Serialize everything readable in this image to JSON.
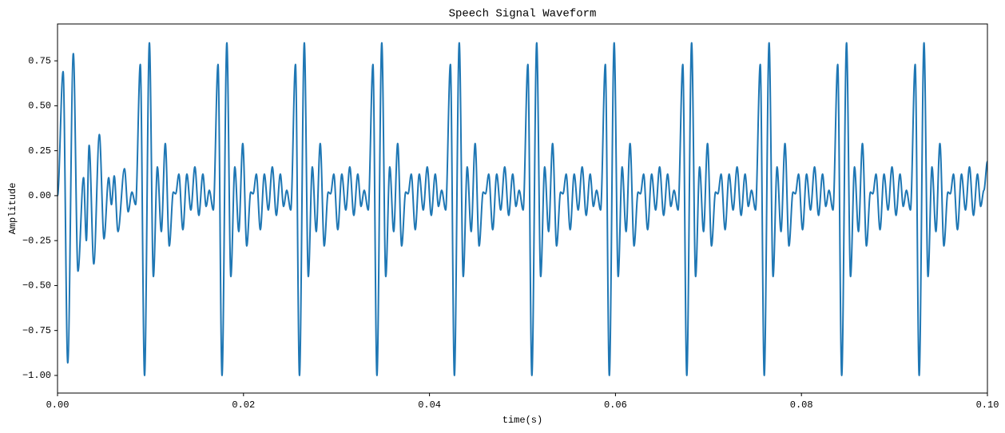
{
  "chart_data": {
    "type": "line",
    "title": "Speech Signal Waveform",
    "x_label": "time(s)",
    "y_label": "Amplitude",
    "xlim": [
      0,
      0.1
    ],
    "ylim": [
      -1.098,
      0.955
    ],
    "xticks": [
      {
        "value": 0,
        "label": "0.00"
      },
      {
        "value": 0.02,
        "label": "0.02"
      },
      {
        "value": 0.04,
        "label": "0.04"
      },
      {
        "value": 0.06,
        "label": "0.06"
      },
      {
        "value": 0.08,
        "label": "0.08"
      },
      {
        "value": 0.1,
        "label": "0.10"
      }
    ],
    "yticks": [
      {
        "value": -1,
        "label": "−1.00"
      },
      {
        "value": -0.75,
        "label": "−0.75"
      },
      {
        "value": -0.5,
        "label": "−0.50"
      },
      {
        "value": -0.25,
        "label": "−0.25"
      },
      {
        "value": 0,
        "label": "0.00"
      },
      {
        "value": 0.25,
        "label": "0.25"
      },
      {
        "value": 0.5,
        "label": "0.50"
      },
      {
        "value": 0.75,
        "label": "0.75"
      }
    ],
    "grid": false,
    "x": [
      0,
      0.0006,
      0.0011,
      0.0017,
      0.0022,
      0.0028,
      0.0031,
      0.0034,
      0.0039,
      0.0045,
      0.005,
      0.0055,
      0.0058,
      0.0061,
      0.0065,
      0.0072,
      0.0076,
      0.008,
      0.0084,
      0.0089,
      0.00936,
      0.00988,
      0.01031,
      0.01074,
      0.01116,
      0.01159,
      0.01202,
      0.01245,
      0.01271,
      0.01305,
      0.01348,
      0.01391,
      0.01434,
      0.01477,
      0.0152,
      0.01563,
      0.01598,
      0.01632,
      0.01675,
      0.01726,
      0.01769,
      0.01821,
      0.01864,
      0.01907,
      0.01949,
      0.01992,
      0.02035,
      0.02078,
      0.02104,
      0.02138,
      0.02181,
      0.02224,
      0.02267,
      0.0231,
      0.02353,
      0.02396,
      0.02431,
      0.02465,
      0.02508,
      0.02559,
      0.02602,
      0.02654,
      0.02697,
      0.0274,
      0.02782,
      0.02825,
      0.02868,
      0.02911,
      0.02937,
      0.02971,
      0.03014,
      0.03057,
      0.031,
      0.03143,
      0.03186,
      0.03229,
      0.03264,
      0.03298,
      0.03341,
      0.03392,
      0.03435,
      0.03487,
      0.0353,
      0.03573,
      0.03615,
      0.03658,
      0.03701,
      0.03744,
      0.0377,
      0.03804,
      0.03847,
      0.0389,
      0.03933,
      0.03976,
      0.04019,
      0.04062,
      0.04097,
      0.04131,
      0.04174,
      0.04225,
      0.04268,
      0.0432,
      0.04363,
      0.04406,
      0.04448,
      0.04491,
      0.04534,
      0.04577,
      0.04603,
      0.04637,
      0.0468,
      0.04723,
      0.04766,
      0.04809,
      0.04852,
      0.04895,
      0.0493,
      0.04964,
      0.05007,
      0.05058,
      0.05101,
      0.05153,
      0.05196,
      0.05239,
      0.05281,
      0.05324,
      0.05367,
      0.0541,
      0.05436,
      0.0547,
      0.05513,
      0.05556,
      0.05599,
      0.05642,
      0.05685,
      0.05728,
      0.05763,
      0.05797,
      0.0584,
      0.05891,
      0.05934,
      0.05986,
      0.06029,
      0.06072,
      0.06114,
      0.06157,
      0.062,
      0.06243,
      0.06269,
      0.06303,
      0.06346,
      0.06389,
      0.06432,
      0.06475,
      0.06518,
      0.06561,
      0.06596,
      0.0663,
      0.06673,
      0.06724,
      0.06767,
      0.06819,
      0.06862,
      0.06905,
      0.06947,
      0.0699,
      0.07033,
      0.07076,
      0.07102,
      0.07136,
      0.07179,
      0.07222,
      0.07265,
      0.07308,
      0.07351,
      0.07394,
      0.07429,
      0.07463,
      0.07506,
      0.07557,
      0.076,
      0.07652,
      0.07695,
      0.07738,
      0.0778,
      0.07823,
      0.07866,
      0.07909,
      0.07935,
      0.07969,
      0.08012,
      0.08055,
      0.08098,
      0.08141,
      0.08184,
      0.08227,
      0.08262,
      0.08296,
      0.08339,
      0.0839,
      0.08433,
      0.08485,
      0.08528,
      0.08571,
      0.08613,
      0.08656,
      0.08699,
      0.08742,
      0.08768,
      0.08802,
      0.08845,
      0.08888,
      0.08931,
      0.08974,
      0.09017,
      0.0906,
      0.09095,
      0.09129,
      0.09172,
      0.09223,
      0.09266,
      0.09318,
      0.09361,
      0.09404,
      0.09446,
      0.09489,
      0.09532,
      0.09575,
      0.09601,
      0.09635,
      0.09678,
      0.09721,
      0.09764,
      0.09807,
      0.0985,
      0.09893,
      0.09928,
      0.09962,
      0.1
    ],
    "series": [
      {
        "color": "#1f77b4",
        "values": [
          0,
          0.69,
          -0.93,
          0.79,
          -0.42,
          0.1,
          -0.25,
          0.28,
          -0.38,
          0.34,
          -0.24,
          0.1,
          -0.05,
          0.11,
          -0.2,
          0.15,
          -0.09,
          0.02,
          -0.05,
          0.73,
          -1.0,
          0.85,
          -0.45,
          0.16,
          -0.2,
          0.29,
          -0.28,
          0.02,
          0.01,
          0.12,
          -0.19,
          0.12,
          -0.08,
          0.16,
          -0.11,
          0.12,
          -0.06,
          0.03,
          -0.08,
          0.73,
          -1.0,
          0.85,
          -0.45,
          0.16,
          -0.2,
          0.29,
          -0.28,
          0.02,
          0.01,
          0.12,
          -0.19,
          0.12,
          -0.08,
          0.16,
          -0.11,
          0.12,
          -0.06,
          0.03,
          -0.08,
          0.73,
          -1.0,
          0.85,
          -0.45,
          0.16,
          -0.2,
          0.29,
          -0.28,
          0.02,
          0.01,
          0.12,
          -0.19,
          0.12,
          -0.08,
          0.16,
          -0.11,
          0.12,
          -0.06,
          0.03,
          -0.08,
          0.73,
          -1.0,
          0.85,
          -0.45,
          0.16,
          -0.2,
          0.29,
          -0.28,
          0.02,
          0.01,
          0.12,
          -0.19,
          0.12,
          -0.08,
          0.16,
          -0.11,
          0.12,
          -0.06,
          0.03,
          -0.08,
          0.73,
          -1.0,
          0.85,
          -0.45,
          0.16,
          -0.2,
          0.29,
          -0.28,
          0.02,
          0.01,
          0.12,
          -0.19,
          0.12,
          -0.08,
          0.16,
          -0.11,
          0.12,
          -0.06,
          0.03,
          -0.08,
          0.73,
          -1.0,
          0.85,
          -0.45,
          0.16,
          -0.2,
          0.29,
          -0.28,
          0.02,
          0.01,
          0.12,
          -0.19,
          0.12,
          -0.08,
          0.16,
          -0.11,
          0.12,
          -0.06,
          0.03,
          -0.08,
          0.73,
          -1.0,
          0.85,
          -0.45,
          0.16,
          -0.2,
          0.29,
          -0.28,
          0.02,
          0.01,
          0.12,
          -0.19,
          0.12,
          -0.08,
          0.16,
          -0.11,
          0.12,
          -0.06,
          0.03,
          -0.08,
          0.73,
          -1.0,
          0.85,
          -0.45,
          0.16,
          -0.2,
          0.29,
          -0.28,
          0.02,
          0.01,
          0.12,
          -0.19,
          0.12,
          -0.08,
          0.16,
          -0.11,
          0.12,
          -0.06,
          0.03,
          -0.08,
          0.73,
          -1.0,
          0.85,
          -0.45,
          0.16,
          -0.2,
          0.29,
          -0.28,
          0.02,
          0.01,
          0.12,
          -0.19,
          0.12,
          -0.08,
          0.16,
          -0.11,
          0.12,
          -0.06,
          0.03,
          -0.08,
          0.73,
          -1.0,
          0.85,
          -0.45,
          0.16,
          -0.2,
          0.29,
          -0.28,
          0.02,
          0.01,
          0.12,
          -0.19,
          0.12,
          -0.08,
          0.16,
          -0.11,
          0.12,
          -0.06,
          0.03,
          -0.08,
          0.73,
          -1.0,
          0.85,
          -0.45,
          0.16,
          -0.2,
          0.29,
          -0.28,
          0.02,
          0.01,
          0.12,
          -0.19,
          0.12,
          -0.08,
          0.16,
          -0.11,
          0.12,
          -0.06,
          0.03,
          0.19
        ]
      }
    ]
  }
}
